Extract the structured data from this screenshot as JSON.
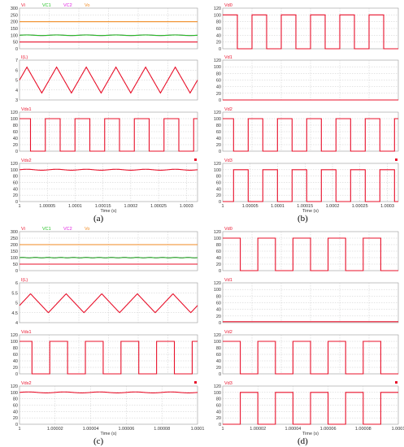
{
  "figure": {
    "captions": [
      "(a)",
      "(b)",
      "(c)",
      "(d)"
    ]
  },
  "colors": {
    "red": "#e8102a",
    "green": "#20c020",
    "magenta": "#e020e0",
    "orange": "#f08a20",
    "grid": "#bdbdbd"
  },
  "chart_data": [
    {
      "figure": "a",
      "column": "left",
      "row": 1,
      "type": "line",
      "legend": [
        "Vi",
        "VC1",
        "VC2",
        "Vo"
      ],
      "ylim": [
        0,
        300
      ],
      "yticks": [
        0,
        50,
        100,
        150,
        200,
        250,
        300
      ],
      "xlim": [
        1,
        1.00032
      ],
      "series": [
        {
          "name": "Vo",
          "color": "orange",
          "kind": "flat",
          "level": 200
        },
        {
          "name": "VC2",
          "color": "magenta",
          "kind": "ripple",
          "level": 100,
          "amp": 2.5,
          "cycles": 6
        },
        {
          "name": "VC1",
          "color": "green",
          "kind": "ripple",
          "level": 100,
          "amp": 2,
          "cycles": 6
        },
        {
          "name": "Vi",
          "color": "red",
          "kind": "flat",
          "level": 50
        }
      ]
    },
    {
      "figure": "a",
      "column": "left",
      "row": 2,
      "type": "line",
      "legend": [
        "I(L)"
      ],
      "ylim": [
        3,
        7
      ],
      "yticks": [
        3,
        4,
        5,
        6,
        7
      ],
      "xlim": [
        1,
        1.00032
      ],
      "series": [
        {
          "name": "I(L)",
          "color": "red",
          "kind": "triangle",
          "min": 3.7,
          "max": 6.3,
          "cycles": 6,
          "start": 5.0
        }
      ]
    },
    {
      "figure": "a",
      "column": "left",
      "row": 3,
      "type": "line",
      "legend": [
        "Vds1"
      ],
      "ylim": [
        0,
        120
      ],
      "yticks": [
        0,
        20,
        40,
        60,
        80,
        100,
        120
      ],
      "xlim": [
        1,
        1.00032
      ],
      "series": [
        {
          "name": "Vds1",
          "color": "red",
          "kind": "square",
          "low": 0,
          "high": 100,
          "cycles": 6,
          "duty": 0.5,
          "phase": 0.13
        }
      ]
    },
    {
      "figure": "a",
      "column": "left",
      "row": 4,
      "type": "line",
      "legend": [
        "Vds2"
      ],
      "ylim": [
        0,
        120
      ],
      "yticks": [
        0,
        20,
        40,
        60,
        80,
        100,
        120
      ],
      "xlim": [
        1,
        1.00032
      ],
      "xticks": [
        1,
        1.00005,
        1.0001,
        1.00015,
        1.0002,
        1.00025,
        1.0003
      ],
      "xtick_labels": [
        "1",
        "1.00005",
        "1.0001",
        "1.00015",
        "1.0002",
        "1.00025",
        "1.0003"
      ],
      "xlabel": "Time (s)",
      "series": [
        {
          "name": "Vds2",
          "color": "red",
          "kind": "ripple",
          "level": 100,
          "amp": 1.5,
          "cycles": 6
        }
      ]
    },
    {
      "figure": "b",
      "column": "right",
      "row": 1,
      "type": "line",
      "legend": [
        "Vd0"
      ],
      "ylim": [
        0,
        120
      ],
      "yticks": [
        0,
        20,
        40,
        60,
        80,
        100,
        120
      ],
      "xlim": [
        1,
        1.00032
      ],
      "series": [
        {
          "name": "Vd0",
          "color": "red",
          "kind": "square",
          "low": 0,
          "high": 100,
          "cycles": 6,
          "duty": 0.5,
          "phase": 0.0
        }
      ]
    },
    {
      "figure": "b",
      "column": "right",
      "row": 2,
      "type": "line",
      "legend": [
        "Vd1"
      ],
      "ylim": [
        0,
        120
      ],
      "yticks": [
        0,
        20,
        40,
        60,
        80,
        100,
        120
      ],
      "xlim": [
        1,
        1.00032
      ],
      "series": [
        {
          "name": "Vd1",
          "color": "red",
          "kind": "flat",
          "level": 0
        }
      ]
    },
    {
      "figure": "b",
      "column": "right",
      "row": 3,
      "type": "line",
      "legend": [
        "Vd2"
      ],
      "ylim": [
        0,
        120
      ],
      "yticks": [
        0,
        20,
        40,
        60,
        80,
        100,
        120
      ],
      "xlim": [
        1,
        1.00032
      ],
      "series": [
        {
          "name": "Vd2",
          "color": "red",
          "kind": "square",
          "low": 0,
          "high": 100,
          "cycles": 6,
          "duty": 0.5,
          "phase": 0.13
        }
      ]
    },
    {
      "figure": "b",
      "column": "right",
      "row": 4,
      "type": "line",
      "legend": [
        "Vd3"
      ],
      "ylim": [
        0,
        120
      ],
      "yticks": [
        0,
        20,
        40,
        60,
        80,
        100,
        120
      ],
      "xlim": [
        1,
        1.00032
      ],
      "xticks": [
        1,
        1.00005,
        1.0001,
        1.00015,
        1.0002,
        1.00025,
        1.0003
      ],
      "xtick_labels": [
        "1",
        "1.00005",
        "1.0001",
        "1.00015",
        "1.0002",
        "1.00025",
        "1.0003"
      ],
      "xlabel": "Time (s)",
      "series": [
        {
          "name": "Vd3",
          "color": "red",
          "kind": "square",
          "low": 0,
          "high": 100,
          "cycles": 6,
          "duty": 0.5,
          "phase": 0.63
        }
      ]
    },
    {
      "figure": "c",
      "column": "left",
      "row": 1,
      "type": "line",
      "legend": [
        "Vi",
        "VC1",
        "VC2",
        "Vo"
      ],
      "ylim": [
        0,
        300
      ],
      "yticks": [
        0,
        50,
        100,
        150,
        200,
        250,
        300
      ],
      "xlim": [
        1,
        1.0001
      ],
      "series": [
        {
          "name": "Vo",
          "color": "orange",
          "kind": "flat",
          "level": 200
        },
        {
          "name": "VC2",
          "color": "magenta",
          "kind": "ripple",
          "level": 100,
          "amp": 2,
          "cycles": 14
        },
        {
          "name": "VC1",
          "color": "green",
          "kind": "ripple",
          "level": 100,
          "amp": 1.5,
          "cycles": 14
        },
        {
          "name": "Vi",
          "color": "red",
          "kind": "flat",
          "level": 50
        }
      ]
    },
    {
      "figure": "c",
      "column": "left",
      "row": 2,
      "type": "line",
      "legend": [
        "I(L)"
      ],
      "ylim": [
        4,
        6
      ],
      "yticks": [
        4,
        4.5,
        5,
        5.5,
        6
      ],
      "xlim": [
        1,
        1.0001
      ],
      "series": [
        {
          "name": "I(L)",
          "color": "red",
          "kind": "triangle",
          "min": 4.5,
          "max": 5.45,
          "cycles": 5,
          "start": 4.8
        }
      ]
    },
    {
      "figure": "c",
      "column": "left",
      "row": 3,
      "type": "line",
      "legend": [
        "Vds1"
      ],
      "ylim": [
        0,
        120
      ],
      "yticks": [
        0,
        20,
        40,
        60,
        80,
        100,
        120
      ],
      "xlim": [
        1,
        1.0001
      ],
      "series": [
        {
          "name": "Vds1",
          "color": "red",
          "kind": "square",
          "low": 0,
          "high": 100,
          "cycles": 5,
          "duty": 0.5,
          "phase": 0.15
        }
      ]
    },
    {
      "figure": "c",
      "column": "left",
      "row": 4,
      "type": "line",
      "legend": [
        "Vds2"
      ],
      "ylim": [
        0,
        120
      ],
      "yticks": [
        0,
        20,
        40,
        60,
        80,
        100,
        120
      ],
      "xlim": [
        1,
        1.0001
      ],
      "xticks": [
        1,
        1.00002,
        1.00004,
        1.00006,
        1.00008,
        1.0001
      ],
      "xtick_labels": [
        "1",
        "1.00002",
        "1.00004",
        "1.00006",
        "1.00008",
        "1.0001"
      ],
      "xlabel": "Time (s)",
      "series": [
        {
          "name": "Vds2",
          "color": "red",
          "kind": "ripple",
          "level": 100,
          "amp": 1.5,
          "cycles": 5
        }
      ]
    },
    {
      "figure": "d",
      "column": "right",
      "row": 1,
      "type": "line",
      "legend": [
        "Vd0"
      ],
      "ylim": [
        0,
        120
      ],
      "yticks": [
        0,
        20,
        40,
        60,
        80,
        100,
        120
      ],
      "xlim": [
        1,
        1.0001
      ],
      "series": [
        {
          "name": "Vd0",
          "color": "red",
          "kind": "square",
          "low": 0,
          "high": 100,
          "cycles": 5,
          "duty": 0.5,
          "phase": 0.0
        }
      ]
    },
    {
      "figure": "d",
      "column": "right",
      "row": 2,
      "type": "line",
      "legend": [
        "Vd1"
      ],
      "ylim": [
        0,
        120
      ],
      "yticks": [
        0,
        20,
        40,
        60,
        80,
        100,
        120
      ],
      "xlim": [
        1,
        1.0001
      ],
      "series": [
        {
          "name": "Vd1",
          "color": "red",
          "kind": "flat",
          "level": 3
        }
      ]
    },
    {
      "figure": "d",
      "column": "right",
      "row": 3,
      "type": "line",
      "legend": [
        "Vd2"
      ],
      "ylim": [
        0,
        120
      ],
      "yticks": [
        0,
        20,
        40,
        60,
        80,
        100,
        120
      ],
      "xlim": [
        1,
        1.0001
      ],
      "series": [
        {
          "name": "Vd2",
          "color": "red",
          "kind": "square",
          "low": 0,
          "high": 100,
          "cycles": 5,
          "duty": 0.5,
          "phase": 0.0
        }
      ]
    },
    {
      "figure": "d",
      "column": "right",
      "row": 4,
      "type": "line",
      "legend": [
        "Vd3"
      ],
      "ylim": [
        0,
        120
      ],
      "yticks": [
        0,
        20,
        40,
        60,
        80,
        100,
        120
      ],
      "xlim": [
        1,
        1.0001
      ],
      "xticks": [
        1,
        1.00002,
        1.00004,
        1.00006,
        1.00008,
        1.0001
      ],
      "xtick_labels": [
        "1",
        "1.00002",
        "1.00004",
        "1.00006",
        "1.00008",
        "1.0001"
      ],
      "xlabel": "Time (s)",
      "series": [
        {
          "name": "Vd3",
          "color": "red",
          "kind": "square",
          "low": 0,
          "high": 100,
          "cycles": 5,
          "duty": 0.5,
          "phase": 0.5
        }
      ]
    }
  ]
}
